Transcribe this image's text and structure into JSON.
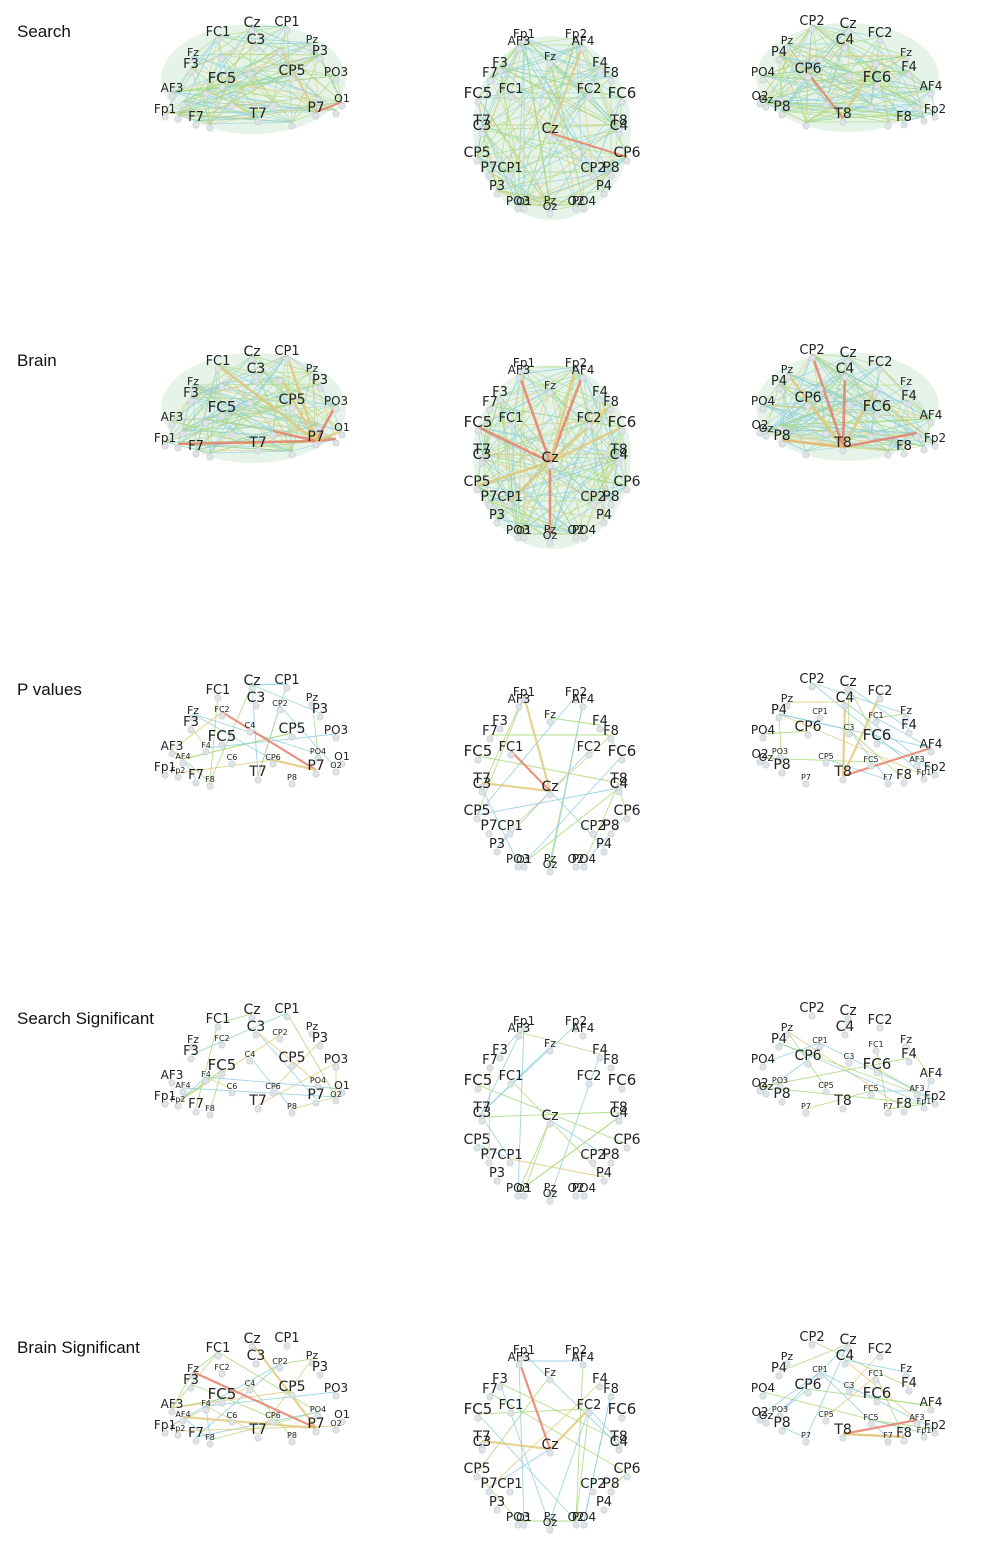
{
  "rows": [
    {
      "label": "Search",
      "density": "dense",
      "strong": "low"
    },
    {
      "label": "Brain",
      "density": "dense",
      "strong": "high"
    },
    {
      "label": "P values",
      "density": "sparse",
      "strong": "medium"
    },
    {
      "label": "Search Significant",
      "density": "sparse",
      "strong": "none"
    },
    {
      "label": "Brain Significant",
      "density": "sparse",
      "strong": "medium"
    }
  ],
  "edge_colors": {
    "weak": "#8fcfe0",
    "mid": "#a8d878",
    "strong": "#e1c97d",
    "max": "#e8806a"
  },
  "views": {
    "left": {
      "big": [
        "FC1",
        "Cz",
        "CP1",
        "C3",
        "F3",
        "CP5",
        "P3",
        "FC5",
        "P7",
        "T7",
        "F7",
        "AF3",
        "Fp1",
        "Fz",
        "Pz",
        "PO3",
        "O1"
      ],
      "small": [
        "FC2",
        "CP2",
        "C4",
        "F4",
        "C6",
        "CP6",
        "P8",
        "AF4",
        "F8",
        "Fp2",
        "PO4",
        "O2"
      ]
    },
    "top": {
      "big": [
        "Fp1",
        "Fp2",
        "AF3",
        "AF4",
        "F3",
        "Fz",
        "F4",
        "F7",
        "F8",
        "FC5",
        "FC1",
        "FC2",
        "FC6",
        "T7",
        "C3",
        "Cz",
        "C4",
        "T8",
        "CP5",
        "CP1",
        "CP2",
        "CP6",
        "P7",
        "P3",
        "Pz",
        "P4",
        "P8",
        "PO3",
        "PO4",
        "O1",
        "Oz",
        "O2"
      ]
    },
    "right": {
      "big": [
        "CP2",
        "Cz",
        "Pz",
        "C4",
        "FC2",
        "P4",
        "CP6",
        "Fz",
        "F4",
        "PO4",
        "FC6",
        "AF4",
        "O2",
        "P8",
        "T8",
        "F8",
        "Fp2",
        "Oz"
      ],
      "small": [
        "CP1",
        "FC1",
        "C3",
        "PO3",
        "CP5",
        "FC5",
        "AF3",
        "P7",
        "F7",
        "Fp1"
      ]
    }
  }
}
